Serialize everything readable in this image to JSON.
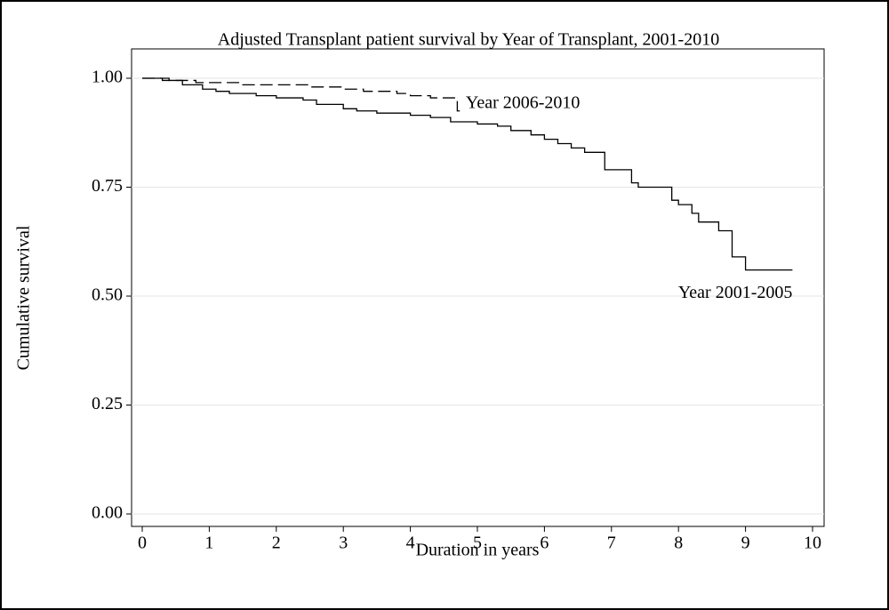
{
  "chart_data": {
    "type": "step",
    "title": "Adjusted Transplant patient survival by Year of Transplant, 2001-2010",
    "xlabel": "Duration in years",
    "ylabel": "Cumulative survival",
    "xlim": [
      0,
      10
    ],
    "ylim": [
      0,
      1
    ],
    "xticks": [
      0,
      1,
      2,
      3,
      4,
      5,
      6,
      7,
      8,
      9,
      10
    ],
    "yticks": [
      {
        "value": 0,
        "label": "0.00"
      },
      {
        "value": 0.25,
        "label": "0.25"
      },
      {
        "value": 0.5,
        "label": "0.50"
      },
      {
        "value": 0.75,
        "label": "0.75"
      },
      {
        "value": 1,
        "label": "1.00"
      }
    ],
    "grid": true,
    "series": [
      {
        "name": "Year 2001-2005",
        "color": "#000000",
        "dash": false,
        "x": [
          0,
          0.3,
          0.6,
          0.9,
          1.1,
          1.3,
          1.7,
          2.0,
          2.4,
          2.6,
          3.0,
          3.2,
          3.5,
          4.0,
          4.3,
          4.6,
          5.0,
          5.3,
          5.5,
          5.8,
          6.0,
          6.2,
          6.4,
          6.6,
          6.9,
          7.3,
          7.4,
          7.9,
          8.0,
          8.2,
          8.3,
          8.6,
          8.8,
          9.0,
          9.7
        ],
        "values": [
          1.0,
          0.995,
          0.985,
          0.975,
          0.97,
          0.965,
          0.96,
          0.955,
          0.95,
          0.94,
          0.93,
          0.925,
          0.92,
          0.915,
          0.91,
          0.9,
          0.895,
          0.89,
          0.88,
          0.87,
          0.86,
          0.85,
          0.84,
          0.83,
          0.79,
          0.76,
          0.75,
          0.72,
          0.71,
          0.69,
          0.67,
          0.65,
          0.59,
          0.56,
          0.56
        ]
      },
      {
        "name": "Year 2006-2010",
        "color": "#000000",
        "dash": true,
        "x": [
          0,
          0.4,
          0.8,
          1.5,
          2.5,
          3.0,
          3.3,
          3.8,
          4.0,
          4.3,
          4.7,
          4.8
        ],
        "values": [
          1.0,
          0.995,
          0.99,
          0.985,
          0.98,
          0.975,
          0.97,
          0.965,
          0.96,
          0.955,
          0.925,
          0.925
        ]
      }
    ]
  }
}
